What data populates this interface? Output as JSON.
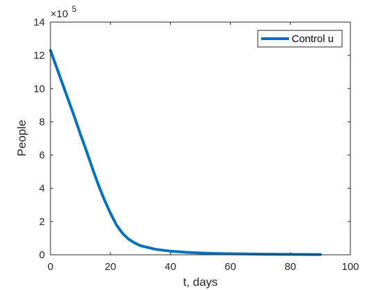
{
  "chart_data": {
    "type": "line",
    "xlabel": "t, days",
    "ylabel": "People",
    "xlim": [
      0,
      100
    ],
    "ylim": [
      0,
      14
    ],
    "xticks": [
      "0",
      "20",
      "40",
      "60",
      "80",
      "100"
    ],
    "yticks": [
      "0",
      "2",
      "4",
      "6",
      "8",
      "10",
      "12",
      "14"
    ],
    "y_multiplier": {
      "base": "×10",
      "exponent": "5"
    },
    "grid": false,
    "legend_position": "top-right",
    "series": [
      {
        "name": "Control u",
        "color": "#0072BD",
        "x": [
          0,
          2,
          4,
          6,
          8,
          10,
          12,
          14,
          16,
          18,
          20,
          22,
          24,
          26,
          28,
          30,
          35,
          40,
          45,
          50,
          55,
          60,
          65,
          70,
          75,
          80,
          85,
          90
        ],
        "y": [
          12.3,
          11.3,
          10.3,
          9.3,
          8.3,
          7.25,
          6.25,
          5.2,
          4.2,
          3.3,
          2.5,
          1.8,
          1.3,
          0.95,
          0.72,
          0.55,
          0.33,
          0.22,
          0.15,
          0.11,
          0.08,
          0.06,
          0.05,
          0.04,
          0.03,
          0.025,
          0.02,
          0.015
        ]
      }
    ]
  }
}
